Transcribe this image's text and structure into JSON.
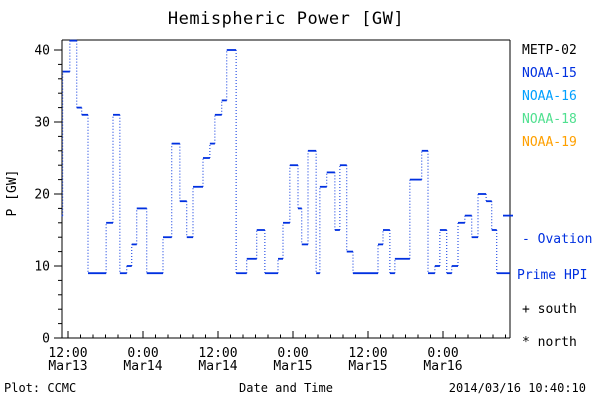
{
  "title": "Hemispheric Power [GW]",
  "ylabel_text": "P [GW]",
  "footer": {
    "credit": "Plot: CCMC",
    "xlabel": "Date and Time",
    "timestamp": "2014/03/16 10:40:10"
  },
  "legend": {
    "satellites": [
      {
        "label": "METP-02",
        "color": "#000000"
      },
      {
        "label": "NOAA-15",
        "color": "#0030e0"
      },
      {
        "label": "NOAA-16",
        "color": "#00a0ff"
      },
      {
        "label": "NOAA-18",
        "color": "#50e090"
      },
      {
        "label": "NOAA-19",
        "color": "#ffa000"
      }
    ],
    "ovation_line1": "- Ovation",
    "ovation_line2": "Prime HPI",
    "ovation_color": "#0030e0",
    "south_marker": "+ south",
    "north_marker": "* north"
  },
  "chart_data": {
    "type": "line",
    "style": "step",
    "title": "Hemispheric Power [GW]",
    "xlabel": "Date and Time",
    "ylabel": "P [GW]",
    "series_name": "Ovation Prime HPI",
    "line_color": "#0030e0",
    "grid": false,
    "ylim": [
      0,
      42
    ],
    "yticks": [
      0,
      10,
      20,
      30,
      40
    ],
    "y_minor_step": 2,
    "x_unit": "hours since 2014-03-13 00:00 UT",
    "x_minor_step_hours": 2,
    "xticks": [
      {
        "t": 12,
        "time": "12:00",
        "date": "Mar13"
      },
      {
        "t": 24,
        "time": "0:00",
        "date": "Mar14"
      },
      {
        "t": 36,
        "time": "12:00",
        "date": "Mar14"
      },
      {
        "t": 48,
        "time": "0:00",
        "date": "Mar15"
      },
      {
        "t": 60,
        "time": "12:00",
        "date": "Mar15"
      },
      {
        "t": 72,
        "time": "0:00",
        "date": "Mar16"
      }
    ],
    "t_start": 11.0,
    "t_end": 82.7,
    "ovation_sample_value": 17,
    "steps": [
      [
        11.0,
        17
      ],
      [
        11.15,
        37
      ],
      [
        12.3,
        41.3
      ],
      [
        13.4,
        32
      ],
      [
        14.2,
        31
      ],
      [
        15.2,
        9
      ],
      [
        18.1,
        16
      ],
      [
        19.2,
        31
      ],
      [
        20.3,
        9
      ],
      [
        21.4,
        10
      ],
      [
        22.2,
        13
      ],
      [
        23.0,
        18
      ],
      [
        24.6,
        9
      ],
      [
        27.2,
        14
      ],
      [
        28.6,
        27
      ],
      [
        29.9,
        19
      ],
      [
        31.0,
        14
      ],
      [
        32.0,
        21
      ],
      [
        33.6,
        25
      ],
      [
        34.7,
        27
      ],
      [
        35.5,
        31
      ],
      [
        36.6,
        33
      ],
      [
        37.4,
        40
      ],
      [
        38.9,
        9
      ],
      [
        40.6,
        11
      ],
      [
        42.2,
        15
      ],
      [
        43.5,
        9
      ],
      [
        45.6,
        11
      ],
      [
        46.4,
        16
      ],
      [
        47.5,
        24
      ],
      [
        48.8,
        18
      ],
      [
        49.4,
        13
      ],
      [
        50.4,
        26
      ],
      [
        51.7,
        9
      ],
      [
        52.3,
        21
      ],
      [
        53.4,
        23
      ],
      [
        54.7,
        15
      ],
      [
        55.5,
        24
      ],
      [
        56.6,
        12
      ],
      [
        57.6,
        9
      ],
      [
        61.6,
        13
      ],
      [
        62.4,
        15
      ],
      [
        63.5,
        9
      ],
      [
        64.3,
        11
      ],
      [
        66.7,
        22
      ],
      [
        68.6,
        26
      ],
      [
        69.6,
        9
      ],
      [
        70.7,
        10
      ],
      [
        71.5,
        15
      ],
      [
        72.6,
        9
      ],
      [
        73.4,
        10
      ],
      [
        74.4,
        16
      ],
      [
        75.5,
        17
      ],
      [
        76.6,
        14
      ],
      [
        77.6,
        20
      ],
      [
        78.9,
        19
      ],
      [
        79.8,
        15
      ],
      [
        80.6,
        9
      ]
    ]
  }
}
